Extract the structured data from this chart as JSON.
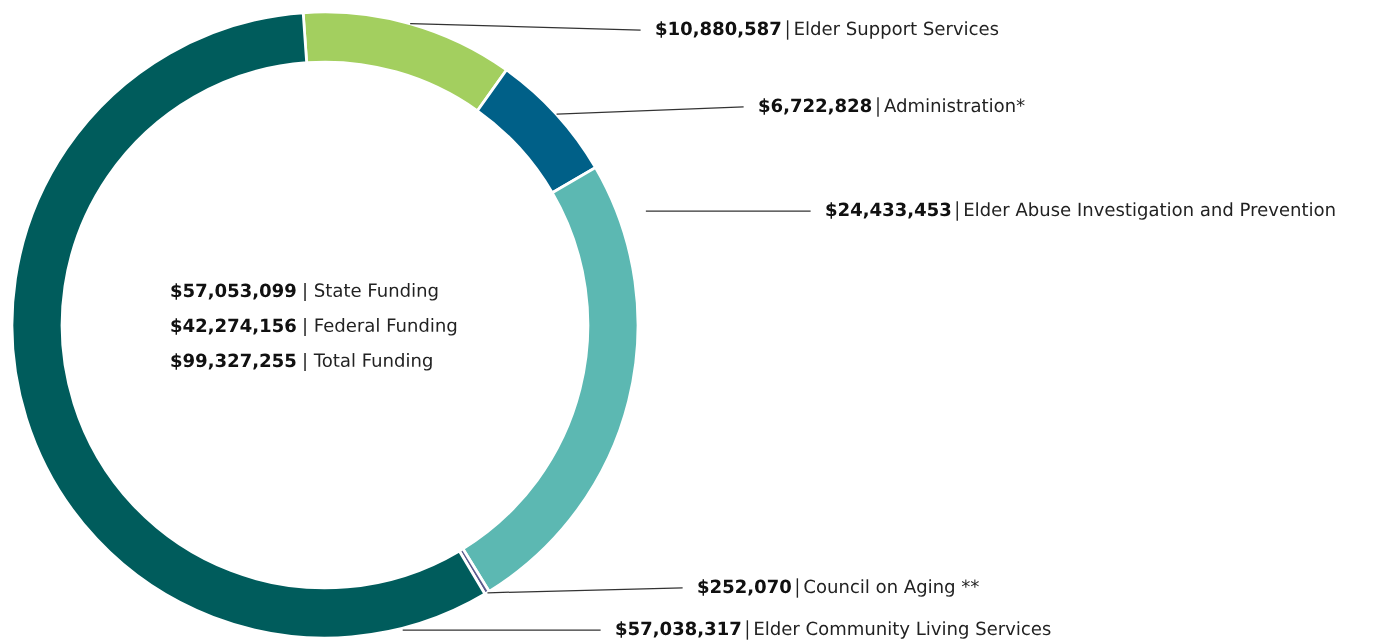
{
  "chart_data": {
    "type": "donut",
    "categories": [
      "Elder Support Services",
      "Administration*",
      "Elder Abuse Investigation and Prevention",
      "Council on Aging **",
      "Elder Community Living Services"
    ],
    "values": [
      10880587,
      6722828,
      24433453,
      252070,
      57038317
    ],
    "colors": [
      "#a3cf5f",
      "#006088",
      "#5cb8b2",
      "#5a5a8c",
      "#005c5c"
    ],
    "value_labels": [
      "$10,880,587",
      "$6,722,828",
      "$24,433,453",
      "$252,070",
      "$57,038,317"
    ],
    "annotations": [
      "$57,053,099 | State Funding",
      "$42,274,156 | Federal Funding",
      "$99,327,255 | Total Funding"
    ],
    "legend": false
  }
}
